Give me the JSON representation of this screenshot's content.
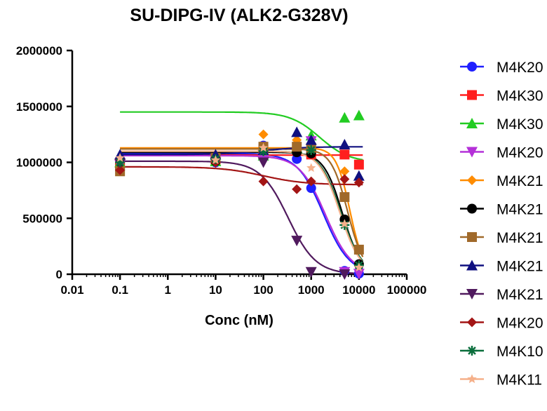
{
  "chart_data": {
    "type": "scatter",
    "title": "SU-DIPG-IV (ALK2-G328V)",
    "xlabel": "Conc (nM)",
    "ylabel": "",
    "x_scale": "log",
    "xlim": [
      0.01,
      100000
    ],
    "ylim": [
      0,
      2000000
    ],
    "x_ticks": [
      "0.01",
      "0.1",
      "1",
      "10",
      "100",
      "1000",
      "10000",
      "100000"
    ],
    "y_ticks": [
      "0",
      "500000",
      "1000000",
      "1500000",
      "2000000"
    ],
    "legend_position": "right",
    "series": [
      {
        "name": "M4K20",
        "marker": "circle",
        "color": "#1f1fff",
        "x": [
          0.1,
          10,
          100,
          500,
          1000,
          5000,
          10000
        ],
        "y": [
          950000,
          1000000,
          1150000,
          1030000,
          770000,
          30000,
          5000
        ],
        "fit": {
          "bottom": 0,
          "top": 1080000,
          "ic50": 1800,
          "hill": 1.6
        }
      },
      {
        "name": "M4K30",
        "marker": "square",
        "color": "#ff1f1f",
        "x": [
          0.1,
          10,
          100,
          1000,
          5000,
          10000
        ],
        "y": [
          990000,
          1020000,
          1080000,
          1070000,
          1070000,
          980000
        ],
        "fit": {
          "bottom": 1065000,
          "top": 1065000,
          "ic50": 1000,
          "hill": 1
        }
      },
      {
        "name": "M4K30",
        "marker": "triangle",
        "color": "#22cc22",
        "x": [
          0.1,
          10,
          100,
          500,
          1000,
          5000,
          10000
        ],
        "y": [
          1000000,
          1010000,
          1060000,
          1130000,
          1240000,
          1400000,
          1420000
        ],
        "fit": {
          "bottom": 1000000,
          "top": 1450000,
          "ic50": 1500,
          "hill": 1.4
        }
      },
      {
        "name": "M4K20",
        "marker": "triangle-down",
        "color": "#b430d8",
        "x": [
          0.1,
          10,
          100,
          1000,
          5000,
          10000
        ],
        "y": [
          980000,
          1030000,
          1020000,
          1190000,
          20000,
          5000
        ],
        "fit": {
          "bottom": 0,
          "top": 1060000,
          "ic50": 2000,
          "hill": 1.6
        }
      },
      {
        "name": "M4K21",
        "marker": "diamond",
        "color": "#ff8c00",
        "x": [
          0.1,
          10,
          100,
          500,
          1000,
          5000,
          10000
        ],
        "y": [
          960000,
          1060000,
          1250000,
          1200000,
          1130000,
          920000,
          90000
        ],
        "fit": {
          "bottom": 0,
          "top": 1130000,
          "ic50": 6500,
          "hill": 3
        }
      },
      {
        "name": "M4K21",
        "marker": "circle",
        "color": "#000000",
        "x": [
          0.1,
          10,
          100,
          500,
          1000,
          5000,
          10000
        ],
        "y": [
          930000,
          1010000,
          1120000,
          1090000,
          1080000,
          490000,
          90000
        ],
        "fit": {
          "bottom": 0,
          "top": 1090000,
          "ic50": 4500,
          "hill": 2.2
        }
      },
      {
        "name": "M4K21",
        "marker": "square",
        "color": "#a0692a",
        "x": [
          0.1,
          10,
          100,
          500,
          1000,
          5000,
          10000
        ],
        "y": [
          920000,
          1040000,
          1140000,
          1140000,
          1130000,
          690000,
          220000
        ],
        "fit": {
          "bottom": 0,
          "top": 1120000,
          "ic50": 5800,
          "hill": 2.5
        }
      },
      {
        "name": "M4K21",
        "marker": "triangle",
        "color": "#101080",
        "x": [
          0.1,
          10,
          100,
          500,
          1000,
          5000,
          10000
        ],
        "y": [
          1070000,
          1070000,
          1110000,
          1270000,
          1200000,
          1160000,
          880000
        ],
        "fit": {
          "bottom": 1140000,
          "top": 1070000,
          "ic50": 100,
          "hill": 1
        }
      },
      {
        "name": "M4K21",
        "marker": "triangle-down",
        "color": "#501a5e",
        "x": [
          0.1,
          10,
          100,
          500,
          1000,
          5000
        ],
        "y": [
          990000,
          1000000,
          1000000,
          300000,
          20000,
          0
        ],
        "fit": {
          "bottom": 0,
          "top": 1010000,
          "ic50": 330,
          "hill": 1.5
        }
      },
      {
        "name": "M4K20",
        "marker": "diamond",
        "color": "#a31515",
        "x": [
          0.1,
          10,
          100,
          500,
          1000,
          5000,
          10000
        ],
        "y": [
          930000,
          1000000,
          830000,
          760000,
          830000,
          850000,
          820000
        ],
        "fit": {
          "bottom": 800000,
          "top": 960000,
          "ic50": 100,
          "hill": 1
        }
      },
      {
        "name": "M4K10",
        "marker": "asterisk",
        "color": "#0a6e3c",
        "x": [
          0.1,
          10,
          100,
          1000,
          5000,
          10000
        ],
        "y": [
          1000000,
          1030000,
          1100000,
          1110000,
          440000,
          80000
        ],
        "fit": {
          "bottom": 0,
          "top": 1100000,
          "ic50": 4200,
          "hill": 2
        }
      },
      {
        "name": "M4K11",
        "marker": "star",
        "color": "#f5b08a",
        "x": [
          0.1,
          10,
          100,
          1000,
          5000,
          10000
        ],
        "y": [
          1040000,
          1020000,
          1130000,
          950000,
          450000,
          60000
        ],
        "fit": {
          "bottom": 0,
          "top": 1100000,
          "ic50": 4000,
          "hill": 2
        }
      }
    ]
  }
}
